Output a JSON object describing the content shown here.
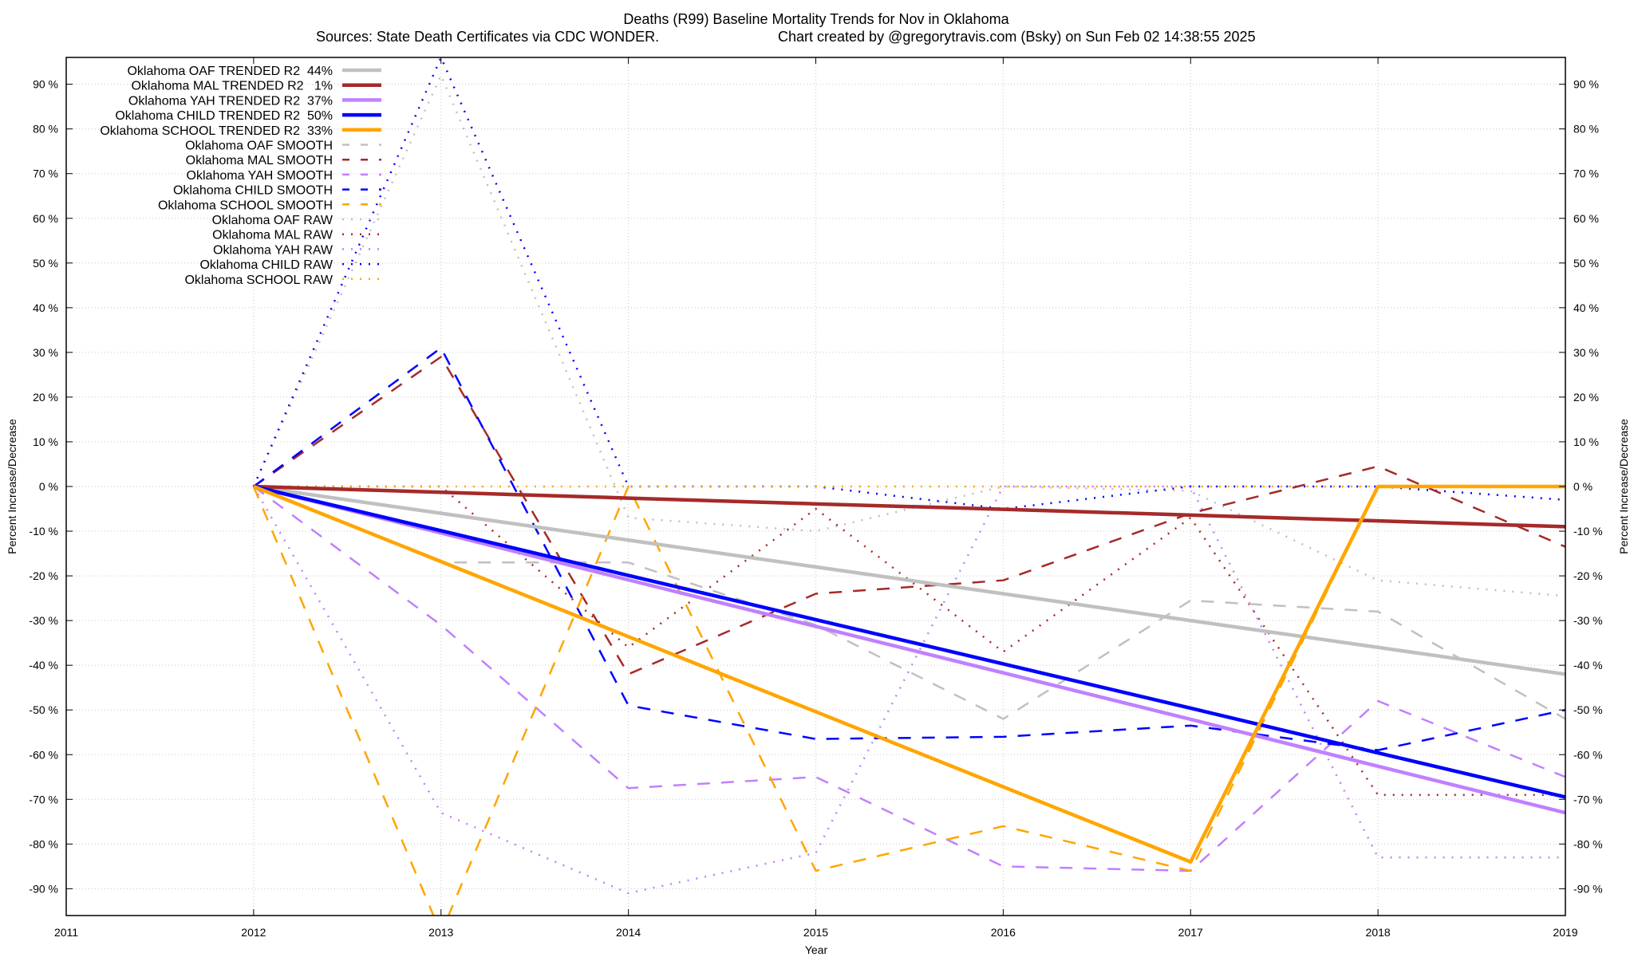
{
  "chart_data": {
    "type": "line",
    "title": "Deaths (R99)  Baseline Mortality Trends for Nov in Oklahoma",
    "subtitle_left": "Sources: State Death Certificates via CDC WONDER.",
    "subtitle_right": "Chart created by @gregorytravis.com (Bsky) on Sun Feb 02 14:38:55 2025",
    "xlabel": "Year",
    "ylabel": "Percent Increase/Decrease",
    "xlim": [
      2011,
      2019
    ],
    "ylim": [
      -96,
      96
    ],
    "x_ticks": [
      "2011",
      "2012",
      "2013",
      "2014",
      "2015",
      "2016",
      "2017",
      "2018",
      "2019"
    ],
    "y_ticks": [
      90,
      80,
      70,
      60,
      50,
      40,
      30,
      20,
      10,
      0,
      -10,
      -20,
      -30,
      -40,
      -50,
      -60,
      -70,
      -80,
      -90
    ],
    "y_tick_labels": [
      "90 %",
      "80 %",
      "70 %",
      "60 %",
      "50 %",
      "40 %",
      "30 %",
      "20 %",
      "10 %",
      "0 %",
      "-10 %",
      "-20 %",
      "-30 %",
      "-40 %",
      "-50 %",
      "-60 %",
      "-70 %",
      "-80 %",
      "-90 %"
    ],
    "grid": true,
    "legend_position": "top-left",
    "x": [
      2012,
      2013,
      2014,
      2015,
      2016,
      2017,
      2018,
      2019
    ],
    "series": [
      {
        "name": "Oklahoma OAF TRENDED R2  44%",
        "style": "solid",
        "color": "#c0c0c0",
        "values": [
          0,
          -6,
          -12,
          -18,
          -24,
          -30,
          -36,
          -42
        ]
      },
      {
        "name": "Oklahoma MAL TRENDED R2   1%",
        "style": "solid",
        "color": "#a52a2a",
        "values": [
          0,
          -1.3,
          -2.6,
          -3.9,
          -5.1,
          -6.4,
          -7.7,
          -9
        ]
      },
      {
        "name": "Oklahoma YAH TRENDED R2  37%",
        "style": "solid",
        "color": "#c080ff",
        "values": [
          0,
          -10.4,
          -20.9,
          -31.3,
          -41.7,
          -52.1,
          -62.6,
          -73
        ]
      },
      {
        "name": "Oklahoma CHILD TRENDED R2  50%",
        "style": "solid",
        "color": "#0000ff",
        "values": [
          0,
          -9.9,
          -19.9,
          -29.8,
          -39.7,
          -49.6,
          -59.6,
          -69.5
        ]
      },
      {
        "name": "Oklahoma SCHOOL TRENDED R2  33%",
        "style": "solid",
        "color": "#ffa500",
        "values": [
          0,
          -16.8,
          -33.6,
          -50.4,
          -67.2,
          -84,
          0,
          0
        ]
      },
      {
        "name": "Oklahoma OAF SMOOTH",
        "style": "dashed",
        "color": "#c0c0c0",
        "values": [
          0,
          -17,
          -17,
          -31,
          -52,
          -25.5,
          -28,
          -52
        ]
      },
      {
        "name": "Oklahoma MAL SMOOTH",
        "style": "dashed",
        "color": "#a52a2a",
        "values": [
          0,
          29,
          -42,
          -24,
          -21,
          -6,
          4.5,
          -13.5
        ]
      },
      {
        "name": "Oklahoma YAH SMOOTH",
        "style": "dashed",
        "color": "#c080ff",
        "values": [
          0,
          -31,
          -67.5,
          -65,
          -85,
          -86,
          -48,
          -65
        ]
      },
      {
        "name": "Oklahoma CHILD SMOOTH",
        "style": "dashed",
        "color": "#0000ff",
        "values": [
          0,
          31,
          -49,
          -56.5,
          -56,
          -53.5,
          -59,
          -50
        ]
      },
      {
        "name": "Oklahoma SCHOOL SMOOTH",
        "style": "dashed",
        "color": "#ffa500",
        "values": [
          0,
          -100,
          0,
          -86,
          -76,
          -86,
          0,
          0
        ]
      },
      {
        "name": "Oklahoma OAF RAW",
        "style": "dotted",
        "color": "#c0c0c0",
        "values": [
          0,
          92,
          -7,
          -10,
          0,
          -1,
          -21,
          -24.5
        ]
      },
      {
        "name": "Oklahoma MAL RAW",
        "style": "dotted",
        "color": "#a52a2a",
        "values": [
          0,
          0,
          -36,
          -5,
          -37,
          -7,
          -69,
          -69
        ]
      },
      {
        "name": "Oklahoma YAH RAW",
        "style": "dotted",
        "color": "#c080ff",
        "values": [
          0,
          -73,
          -91,
          -82,
          0,
          0,
          -83,
          -83
        ]
      },
      {
        "name": "Oklahoma CHILD RAW",
        "style": "dotted",
        "color": "#0000ff",
        "values": [
          0,
          96,
          0,
          0,
          -5,
          0,
          0,
          -3
        ]
      },
      {
        "name": "Oklahoma SCHOOL RAW",
        "style": "dotted",
        "color": "#ffa500",
        "values": [
          0,
          0,
          0,
          0,
          0,
          0,
          0,
          0
        ]
      }
    ]
  }
}
